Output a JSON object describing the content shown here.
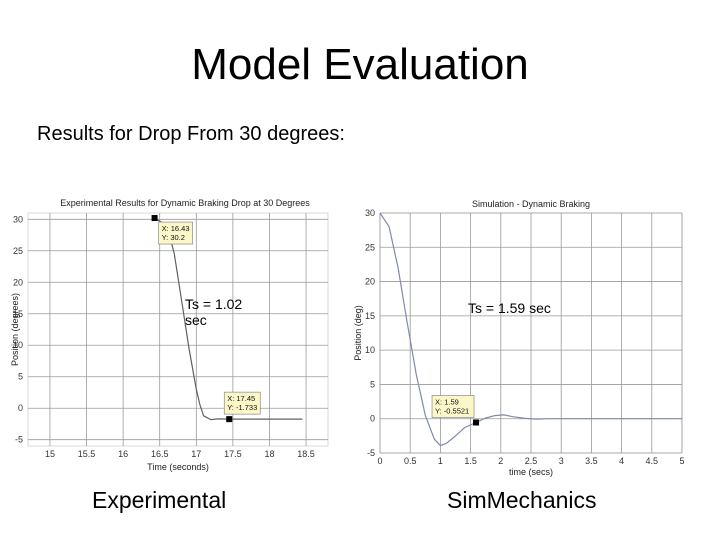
{
  "slide": {
    "title": "Model Evaluation",
    "subtitle": "Results for Drop From 30 degrees:",
    "caption_left": "Experimental",
    "caption_right": "SimMechanics"
  },
  "chart_data": [
    {
      "type": "line",
      "title": "Experimental Results for Dynamic Braking Drop at 30 Degrees",
      "xlabel": "Time (seconds)",
      "ylabel": "Position (degrees)",
      "xlim": [
        14.7,
        18.8
      ],
      "ylim": [
        -6,
        31
      ],
      "x_ticks": [
        15,
        15.5,
        16,
        16.5,
        17,
        17.5,
        18,
        18.5
      ],
      "y_ticks": [
        -5,
        0,
        5,
        10,
        15,
        20,
        25,
        30
      ],
      "grid": true,
      "series": [
        {
          "color": "#606060",
          "x": [
            16.43,
            16.6,
            16.7,
            16.8,
            16.9,
            17.0,
            17.05,
            17.1,
            17.2,
            17.3,
            17.45,
            17.6,
            17.8,
            18.0,
            18.2,
            18.45
          ],
          "y": [
            30.2,
            29.0,
            24.5,
            17.0,
            9.5,
            3.0,
            0.5,
            -1.2,
            -1.8,
            -1.7,
            -1.73,
            -1.73,
            -1.73,
            -1.73,
            -1.73,
            -1.73
          ]
        }
      ],
      "datatips": [
        {
          "x_label": "X: 16.43",
          "y_label": "Y: 30.2",
          "x": 16.43,
          "y": 30.2
        },
        {
          "x_label": "X: 17.45",
          "y_label": "Y: -1.733",
          "x": 17.45,
          "y": -1.733
        }
      ],
      "annotation": {
        "line1": "Ts = 1.02",
        "line2": "sec"
      }
    },
    {
      "type": "line",
      "title": "Simulation - Dynamic Braking",
      "xlabel": "time (secs)",
      "ylabel": "Position (deg)",
      "xlim": [
        0,
        5
      ],
      "ylim": [
        -5,
        30
      ],
      "x_ticks": [
        0,
        0.5,
        1,
        1.5,
        2,
        2.5,
        3,
        3.5,
        4,
        4.5,
        5
      ],
      "y_ticks": [
        -5,
        0,
        5,
        10,
        15,
        20,
        25,
        30
      ],
      "grid": true,
      "series": [
        {
          "color": "#7f8aa8",
          "x": [
            0,
            0.15,
            0.3,
            0.45,
            0.6,
            0.75,
            0.9,
            1.0,
            1.1,
            1.25,
            1.4,
            1.59,
            1.75,
            1.9,
            2.05,
            2.2,
            2.4,
            2.6,
            2.8,
            3.0,
            3.5,
            4.0,
            4.5,
            5.0
          ],
          "y": [
            30,
            28,
            22,
            14,
            6.5,
            0.5,
            -3.0,
            -3.9,
            -3.6,
            -2.5,
            -1.3,
            -0.55,
            0.1,
            0.45,
            0.55,
            0.3,
            0.05,
            -0.05,
            0.0,
            0.0,
            0.0,
            0.0,
            0.0,
            0.0
          ]
        }
      ],
      "datatips": [
        {
          "x_label": "X: 1.59",
          "y_label": "Y: -0.5521",
          "x": 1.59,
          "y": -0.5521
        }
      ],
      "annotation": {
        "line1": "Ts = 1.59 sec"
      }
    }
  ]
}
